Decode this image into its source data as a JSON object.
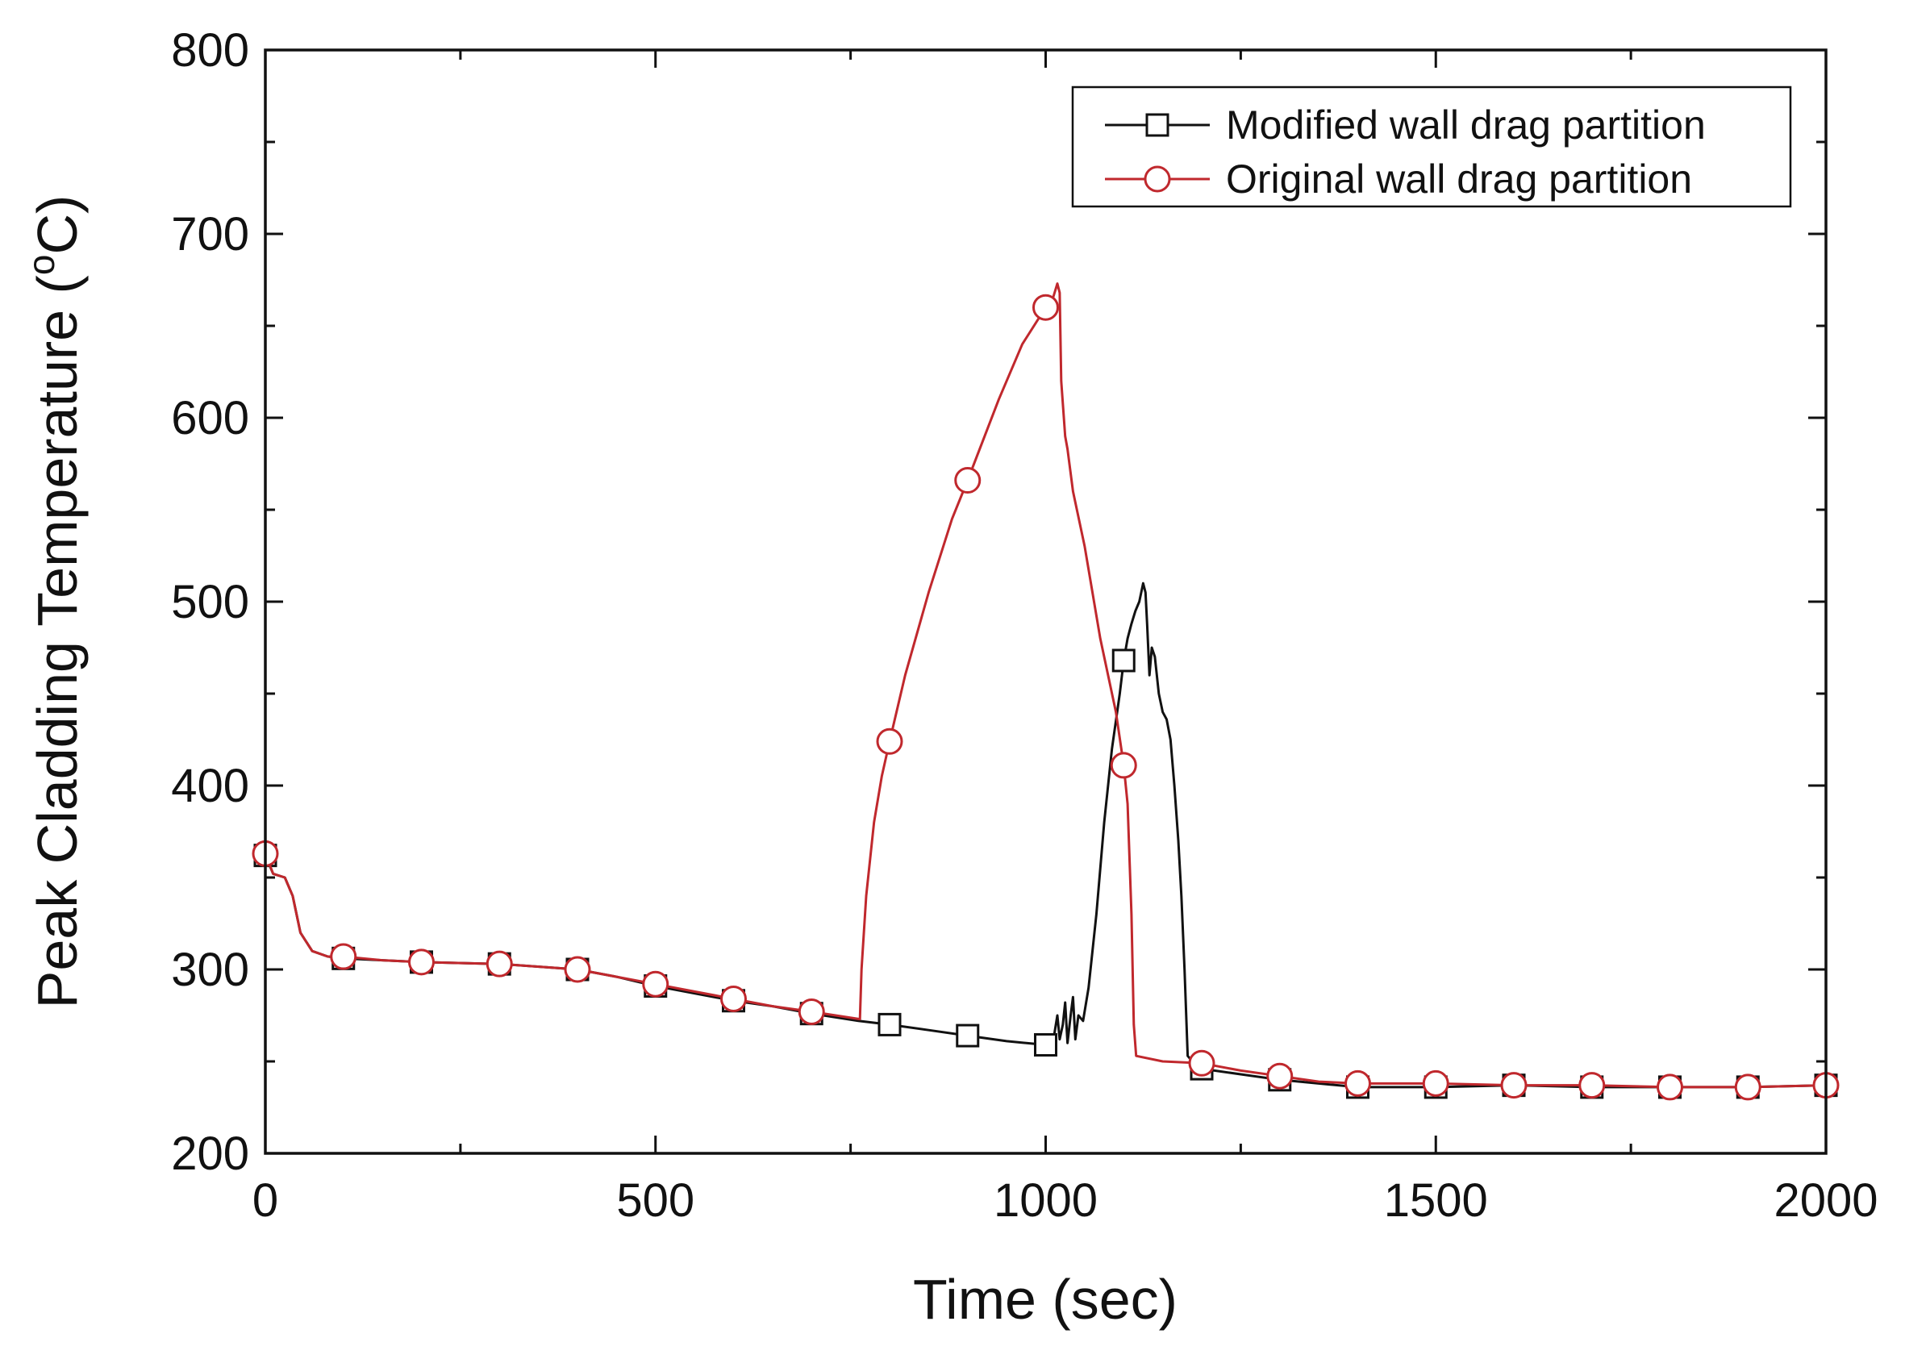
{
  "chart_data": {
    "type": "line",
    "title": "",
    "xlabel": "Time (sec)",
    "ylabel": {
      "main": "Peak Cladding Temperature (",
      "superscript": "o",
      "unit": "C)"
    },
    "xlim": [
      0,
      2000
    ],
    "ylim": [
      200,
      800
    ],
    "xticks": [
      0,
      500,
      1000,
      1500,
      2000
    ],
    "xtick_labels": [
      "0",
      "500",
      "1000",
      "1500",
      "2000"
    ],
    "x_minor_ticks": [
      250,
      750,
      1250,
      1750
    ],
    "yticks": [
      200,
      300,
      400,
      500,
      600,
      700,
      800
    ],
    "ytick_labels": [
      "200",
      "300",
      "400",
      "500",
      "600",
      "700",
      "800"
    ],
    "y_minor_ticks": [
      250,
      350,
      450,
      550,
      650,
      750
    ],
    "grid": false,
    "legend_position": "top-right",
    "series": [
      {
        "name": "Modified wall drag partition",
        "color": "#111111",
        "marker": "square",
        "line": [
          [
            0,
            362
          ],
          [
            10,
            352
          ],
          [
            25,
            350
          ],
          [
            35,
            340
          ],
          [
            45,
            320
          ],
          [
            60,
            310
          ],
          [
            80,
            307
          ],
          [
            100,
            306
          ],
          [
            150,
            305
          ],
          [
            200,
            304
          ],
          [
            300,
            303
          ],
          [
            400,
            300
          ],
          [
            450,
            296
          ],
          [
            500,
            291
          ],
          [
            550,
            287
          ],
          [
            600,
            283
          ],
          [
            650,
            280
          ],
          [
            700,
            276
          ],
          [
            760,
            272
          ],
          [
            800,
            270
          ],
          [
            850,
            267
          ],
          [
            900,
            264
          ],
          [
            950,
            261
          ],
          [
            1000,
            259
          ],
          [
            1010,
            262
          ],
          [
            1015,
            275
          ],
          [
            1018,
            262
          ],
          [
            1022,
            270
          ],
          [
            1025,
            282
          ],
          [
            1028,
            260
          ],
          [
            1032,
            275
          ],
          [
            1035,
            285
          ],
          [
            1038,
            262
          ],
          [
            1042,
            275
          ],
          [
            1048,
            272
          ],
          [
            1055,
            290
          ],
          [
            1065,
            330
          ],
          [
            1075,
            380
          ],
          [
            1085,
            420
          ],
          [
            1095,
            450
          ],
          [
            1100,
            468
          ],
          [
            1105,
            480
          ],
          [
            1110,
            488
          ],
          [
            1115,
            495
          ],
          [
            1120,
            500
          ],
          [
            1125,
            510
          ],
          [
            1128,
            505
          ],
          [
            1130,
            488
          ],
          [
            1133,
            460
          ],
          [
            1136,
            475
          ],
          [
            1140,
            470
          ],
          [
            1145,
            450
          ],
          [
            1150,
            440
          ],
          [
            1155,
            436
          ],
          [
            1160,
            425
          ],
          [
            1165,
            400
          ],
          [
            1170,
            370
          ],
          [
            1174,
            340
          ],
          [
            1178,
            300
          ],
          [
            1182,
            253
          ],
          [
            1190,
            249
          ],
          [
            1200,
            246
          ],
          [
            1250,
            243
          ],
          [
            1300,
            240
          ],
          [
            1350,
            238
          ],
          [
            1400,
            236
          ],
          [
            1500,
            236
          ],
          [
            1600,
            237
          ],
          [
            1700,
            236
          ],
          [
            1800,
            236
          ],
          [
            1900,
            236
          ],
          [
            2000,
            237
          ]
        ],
        "markers": [
          [
            0,
            362
          ],
          [
            100,
            306
          ],
          [
            200,
            304
          ],
          [
            300,
            303
          ],
          [
            400,
            300
          ],
          [
            500,
            291
          ],
          [
            600,
            283
          ],
          [
            700,
            276
          ],
          [
            800,
            270
          ],
          [
            900,
            264
          ],
          [
            1000,
            259
          ],
          [
            1100,
            468
          ],
          [
            1200,
            246
          ],
          [
            1300,
            240
          ],
          [
            1400,
            236
          ],
          [
            1500,
            236
          ],
          [
            1600,
            237
          ],
          [
            1700,
            236
          ],
          [
            1800,
            236
          ],
          [
            1900,
            236
          ],
          [
            2000,
            237
          ]
        ]
      },
      {
        "name": "Original wall drag partition",
        "color": "#c0282d",
        "marker": "circle",
        "line": [
          [
            0,
            363
          ],
          [
            10,
            352
          ],
          [
            25,
            350
          ],
          [
            35,
            340
          ],
          [
            45,
            320
          ],
          [
            60,
            310
          ],
          [
            80,
            307
          ],
          [
            100,
            307
          ],
          [
            150,
            305
          ],
          [
            200,
            304
          ],
          [
            300,
            303
          ],
          [
            400,
            300
          ],
          [
            450,
            296
          ],
          [
            500,
            292
          ],
          [
            550,
            288
          ],
          [
            600,
            284
          ],
          [
            650,
            280
          ],
          [
            700,
            277
          ],
          [
            762,
            273
          ],
          [
            764,
            300
          ],
          [
            770,
            340
          ],
          [
            780,
            380
          ],
          [
            790,
            405
          ],
          [
            800,
            424
          ],
          [
            820,
            460
          ],
          [
            850,
            505
          ],
          [
            880,
            545
          ],
          [
            900,
            566
          ],
          [
            940,
            610
          ],
          [
            970,
            640
          ],
          [
            1000,
            660
          ],
          [
            1010,
            666
          ],
          [
            1015,
            673
          ],
          [
            1018,
            668
          ],
          [
            1020,
            620
          ],
          [
            1025,
            590
          ],
          [
            1028,
            583
          ],
          [
            1035,
            560
          ],
          [
            1050,
            530
          ],
          [
            1070,
            480
          ],
          [
            1090,
            440
          ],
          [
            1100,
            411
          ],
          [
            1105,
            390
          ],
          [
            1110,
            330
          ],
          [
            1113,
            270
          ],
          [
            1116,
            253
          ],
          [
            1150,
            250
          ],
          [
            1200,
            249
          ],
          [
            1250,
            245
          ],
          [
            1300,
            242
          ],
          [
            1350,
            239
          ],
          [
            1400,
            238
          ],
          [
            1500,
            238
          ],
          [
            1600,
            237
          ],
          [
            1700,
            237
          ],
          [
            1800,
            236
          ],
          [
            1900,
            236
          ],
          [
            2000,
            237
          ]
        ],
        "markers": [
          [
            0,
            363
          ],
          [
            100,
            307
          ],
          [
            200,
            304
          ],
          [
            300,
            303
          ],
          [
            400,
            300
          ],
          [
            500,
            292
          ],
          [
            600,
            284
          ],
          [
            700,
            277
          ],
          [
            800,
            424
          ],
          [
            900,
            566
          ],
          [
            1000,
            660
          ],
          [
            1100,
            411
          ],
          [
            1200,
            249
          ],
          [
            1300,
            242
          ],
          [
            1400,
            238
          ],
          [
            1500,
            238
          ],
          [
            1600,
            237
          ],
          [
            1700,
            237
          ],
          [
            1800,
            236
          ],
          [
            1900,
            236
          ],
          [
            2000,
            237
          ]
        ]
      }
    ]
  }
}
